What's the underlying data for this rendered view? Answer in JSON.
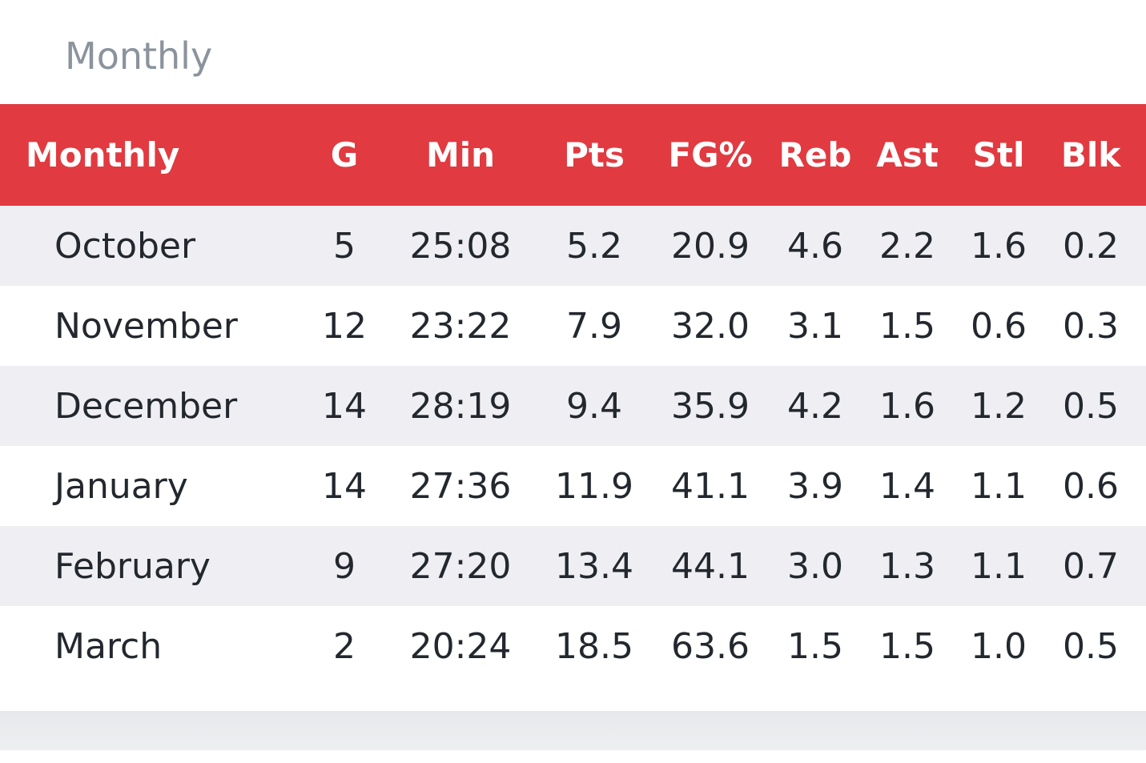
{
  "section": {
    "title": "Monthly"
  },
  "table": {
    "headers": [
      "Monthly",
      "G",
      "Min",
      "Pts",
      "FG%",
      "Reb",
      "Ast",
      "Stl",
      "Blk"
    ],
    "rows": [
      [
        "October",
        "5",
        "25:08",
        "5.2",
        "20.9",
        "4.6",
        "2.2",
        "1.6",
        "0.2"
      ],
      [
        "November",
        "12",
        "23:22",
        "7.9",
        "32.0",
        "3.1",
        "1.5",
        "0.6",
        "0.3"
      ],
      [
        "December",
        "14",
        "28:19",
        "9.4",
        "35.9",
        "4.2",
        "1.6",
        "1.2",
        "0.5"
      ],
      [
        "January",
        "14",
        "27:36",
        "11.9",
        "41.1",
        "3.9",
        "1.4",
        "1.1",
        "0.6"
      ],
      [
        "February",
        "9",
        "27:20",
        "13.4",
        "44.1",
        "3.0",
        "1.3",
        "1.1",
        "0.7"
      ],
      [
        "March",
        "2",
        "20:24",
        "18.5",
        "63.6",
        "1.5",
        "1.5",
        "1.0",
        "0.5"
      ]
    ]
  },
  "colors": {
    "header_bg": "#e13a40",
    "header_text": "#ffffff",
    "row_alt_bg": "#efeff3",
    "title_text": "#8b939c"
  }
}
